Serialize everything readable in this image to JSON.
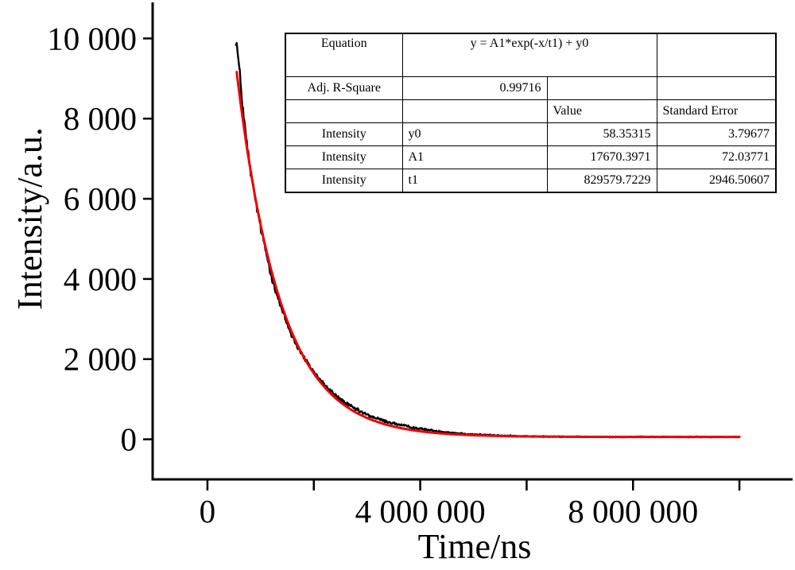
{
  "figure": {
    "background": "#ffffff",
    "axis_color": "#000000"
  },
  "fit_table": {
    "equation_label": "Equation",
    "equation_value": "y = A1*exp(-x/t1) + y0",
    "r_square_label": "Adj. R-Square",
    "r_square_value": "0.99716",
    "value_header": "Value",
    "stderr_header": "Standard Error",
    "rows": [
      {
        "series": "Intensity",
        "param": "y0",
        "value": "58.35315",
        "stderr": "3.79677"
      },
      {
        "series": "Intensity",
        "param": "A1",
        "value": "17670.3971",
        "stderr": "72.03771"
      },
      {
        "series": "Intensity",
        "param": "t1",
        "value": "829579.7229",
        "stderr": "2946.50607"
      }
    ]
  },
  "chart_data": {
    "type": "line",
    "title": "",
    "xlabel": "Time/ns",
    "ylabel": "Intensity/a.u.",
    "xlim": [
      -1030000,
      11000000
    ],
    "ylim": [
      -1000,
      10900
    ],
    "grid": false,
    "legend": "none",
    "x_ticks": [
      0,
      2000000,
      4000000,
      6000000,
      8000000,
      10000000
    ],
    "x_tick_labels": [
      "0",
      "",
      "4 000 000",
      "",
      "8 000 000",
      ""
    ],
    "y_ticks": [
      0,
      2000,
      4000,
      6000,
      8000,
      10000
    ],
    "y_tick_labels": [
      "0",
      "2 000",
      "4 000",
      "6 000",
      "8 000",
      "10 000"
    ],
    "series": [
      {
        "name": "measured-decay",
        "color": "#000000",
        "style": "noisy-line",
        "line_width": 2.4,
        "noise_sigma_coeff": 0.8,
        "noise_seed": 12345,
        "t": [
          540000,
          600000,
          650000,
          700000,
          750000,
          800000,
          850000,
          900000,
          950000,
          1000000,
          1100000,
          1200000,
          1300000,
          1400000,
          1500000,
          1600000,
          1700000,
          1800000,
          1900000,
          2000000,
          2200000,
          2400000,
          2600000,
          2800000,
          3000000,
          3200000,
          3400000,
          3600000,
          3800000,
          4000000,
          4250000,
          4500000,
          4750000,
          5000000,
          5500000,
          6000000,
          6500000,
          7000000,
          7500000,
          8000000,
          8500000,
          9000000,
          9500000,
          10000000
        ],
        "y": [
          9980,
          9205,
          8478,
          7819,
          7272,
          6785,
          6372,
          5989,
          5629,
          5291,
          4668,
          4119,
          3637,
          3221,
          2866,
          2560,
          2298,
          2065,
          1860,
          1675,
          1354,
          1098,
          896,
          738,
          612,
          511,
          430,
          364,
          309,
          263,
          215,
          177,
          147,
          123,
          91,
          75,
          66,
          62,
          60,
          59,
          59,
          58,
          58,
          58
        ]
      },
      {
        "name": "exponential-fit",
        "color": "#ee0000",
        "style": "smooth-line",
        "line_width": 3,
        "model": "y = A1*exp(-x/t1) + y0",
        "params": {
          "A1": 17670.3971,
          "t1": 829579.7229,
          "y0": 58.35315
        },
        "t_range": [
          550000,
          10000000
        ]
      }
    ]
  }
}
